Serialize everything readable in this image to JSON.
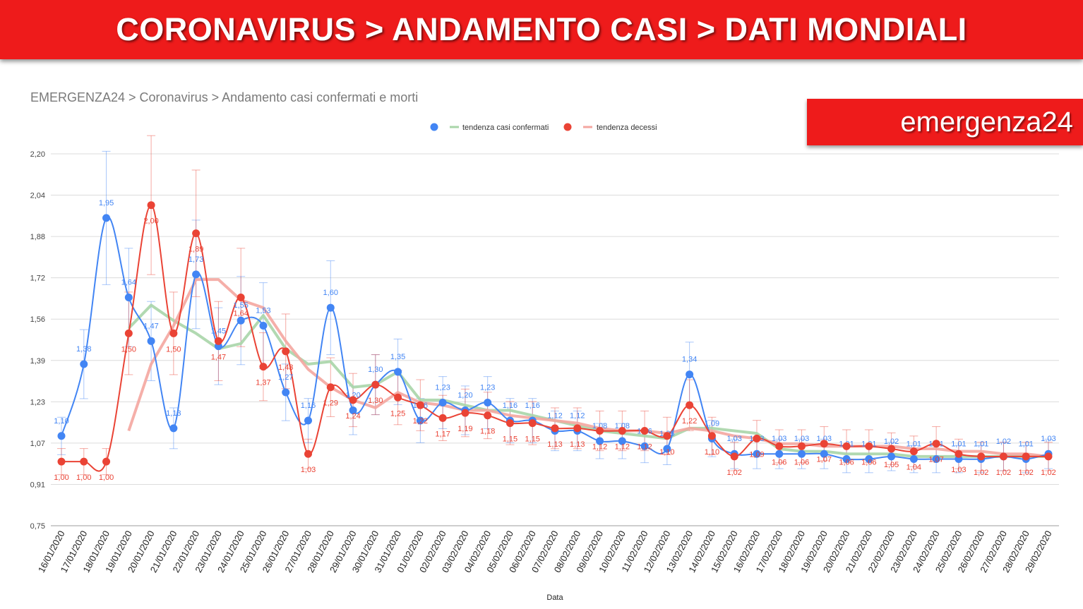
{
  "header": {
    "title": "CORONAVIRUS > ANDAMENTO CASI > DATI MONDIALI"
  },
  "breadcrumb": "EMERGENZA24 > Coronavirus > Andamento casi confermati e morti",
  "brand": "emergenza24",
  "colors": {
    "banner": "#ee1b1b",
    "confirmed": "#4285f4",
    "deaths": "#ea4335",
    "trend_confirmed": "#a8d5a8",
    "trend_deaths": "#f4a6a0"
  },
  "chart_data": {
    "type": "line",
    "xlabel": "Data",
    "ylabel": "",
    "ylim": [
      0.75,
      2.2
    ],
    "yticks": [
      "2,20",
      "2,04",
      "1,88",
      "1,72",
      "1,56",
      "1,39",
      "1,23",
      "1,07",
      "0,91",
      "0,75"
    ],
    "grid": true,
    "legend_position": "top",
    "legend": [
      "tendenza casi confermati",
      "tendenza decessi"
    ],
    "categories": [
      "16/01/2020",
      "17/01/2020",
      "18/01/2020",
      "19/01/2020",
      "20/01/2020",
      "21/01/2020",
      "22/01/2020",
      "23/01/2020",
      "24/01/2020",
      "25/01/2020",
      "26/01/2020",
      "27/01/2020",
      "28/01/2020",
      "29/01/2020",
      "30/01/2020",
      "31/01/2020",
      "01/02/2020",
      "02/02/2020",
      "03/02/2020",
      "04/02/2020",
      "05/02/2020",
      "06/02/2020",
      "07/02/2020",
      "08/02/2020",
      "09/02/2020",
      "10/02/2020",
      "11/02/2020",
      "12/02/2020",
      "13/02/2020",
      "14/02/2020",
      "15/02/2020",
      "16/02/2020",
      "17/02/2020",
      "18/02/2020",
      "19/02/2020",
      "20/02/2020",
      "21/02/2020",
      "22/02/2020",
      "23/02/2020",
      "24/02/2020",
      "25/02/2020",
      "26/02/2020",
      "27/02/2020",
      "28/02/2020",
      "29/02/2020"
    ],
    "series": [
      {
        "name": "casi confermati",
        "values": [
          1.1,
          1.38,
          1.95,
          1.64,
          1.47,
          1.13,
          1.73,
          1.45,
          1.55,
          1.53,
          1.27,
          1.16,
          1.6,
          1.2,
          1.3,
          1.35,
          1.16,
          1.23,
          1.2,
          1.23,
          1.16,
          1.16,
          1.12,
          1.12,
          1.08,
          1.08,
          1.06,
          1.05,
          1.34,
          1.09,
          1.03,
          1.03,
          1.03,
          1.03,
          1.03,
          1.01,
          1.01,
          1.02,
          1.01,
          1.01,
          1.01,
          1.01,
          1.02,
          1.01,
          1.03
        ],
        "labels": [
          "1,10",
          "1,38",
          "1,95",
          "1,64",
          "1,47",
          "1,13",
          "1,73",
          "1,45",
          "1,55",
          "1,53",
          "1,27",
          "1,16",
          "1,60",
          "1,20",
          "1,30",
          "1,35",
          "1,16",
          "1,23",
          "1,20",
          "1,23",
          "1,16",
          "1,16",
          "1,12",
          "1,12",
          "1,08",
          "1,08",
          "1,06",
          "1,05",
          "1,34",
          "1,09",
          "1,03",
          "1,03",
          "1,03",
          "1,03",
          "1,03",
          "1,01",
          "1,01",
          "1,02",
          "1,01",
          "1,01",
          "1,01",
          "1,01",
          "1,02",
          "1,01",
          "1,03"
        ]
      },
      {
        "name": "decessi",
        "values": [
          1.0,
          1.0,
          1.0,
          1.5,
          2.0,
          1.5,
          1.89,
          1.47,
          1.64,
          1.37,
          1.43,
          1.03,
          1.29,
          1.24,
          1.3,
          1.25,
          1.22,
          1.17,
          1.19,
          1.18,
          1.15,
          1.15,
          1.13,
          1.13,
          1.12,
          1.12,
          1.12,
          1.1,
          1.22,
          1.1,
          1.02,
          1.09,
          1.06,
          1.06,
          1.07,
          1.06,
          1.06,
          1.05,
          1.04,
          1.07,
          1.03,
          1.02,
          1.02,
          1.02,
          1.02
        ],
        "labels": [
          "1,00",
          "1,00",
          "1,00",
          "1,50",
          "2,00",
          "1,50",
          "1,89",
          "1,47",
          "1,64",
          "1,37",
          "1,43",
          "1,03",
          "1,29",
          "1,24",
          "1,30",
          "1,25",
          "1,22",
          "1,17",
          "1,19",
          "1,18",
          "1,15",
          "1,15",
          "1,13",
          "1,13",
          "1,12",
          "1,12",
          "1,12",
          "1,10",
          "1,22",
          "1,10",
          "1,02",
          "1,09",
          "1,06",
          "1,06",
          "1,07",
          "1,06",
          "1,06",
          "1,05",
          "1,04",
          "1,07",
          "1,03",
          "1,02",
          "1,02",
          "1,02",
          "1,02"
        ]
      },
      {
        "name": "tendenza casi confermati",
        "values": [
          null,
          null,
          null,
          1.52,
          1.61,
          1.55,
          1.5,
          1.44,
          1.46,
          1.57,
          1.44,
          1.38,
          1.39,
          1.29,
          1.3,
          1.35,
          1.24,
          1.24,
          1.22,
          1.2,
          1.2,
          1.18,
          1.16,
          1.14,
          1.12,
          1.11,
          1.1,
          1.09,
          1.13,
          1.13,
          1.12,
          1.11,
          1.05,
          1.04,
          1.04,
          1.03,
          1.03,
          1.03,
          1.02,
          1.02,
          1.02,
          1.02,
          1.02,
          1.02,
          1.02
        ]
      },
      {
        "name": "tendenza decessi",
        "values": [
          null,
          null,
          null,
          1.12,
          1.38,
          1.53,
          1.71,
          1.71,
          1.63,
          1.6,
          1.47,
          1.36,
          1.29,
          1.24,
          1.21,
          1.27,
          1.23,
          1.22,
          1.2,
          1.2,
          1.18,
          1.17,
          1.16,
          1.15,
          1.13,
          1.12,
          1.12,
          1.11,
          1.13,
          1.12,
          1.1,
          1.09,
          1.07,
          1.07,
          1.06,
          1.06,
          1.06,
          1.06,
          1.05,
          1.05,
          1.04,
          1.04,
          1.03,
          1.03,
          1.02
        ]
      }
    ]
  }
}
